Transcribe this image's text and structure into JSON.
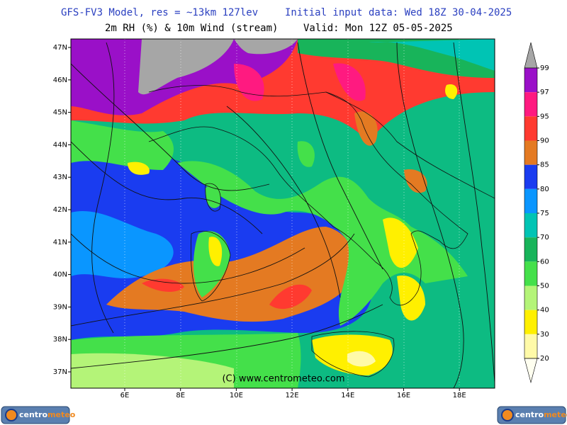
{
  "header": {
    "title_left": "GFS-FV3 Model, res = ~13km 127lev",
    "title_right": "Initial input data: Wed 18Z 30-04-2025",
    "subtitle_left": "2m RH (%) & 10m Wind (stream)",
    "subtitle_right": "Valid: Mon 12Z 05-05-2025"
  },
  "map": {
    "lat_labels": [
      "47N",
      "46N",
      "45N",
      "44N",
      "43N",
      "42N",
      "41N",
      "40N",
      "39N",
      "38N",
      "37N"
    ],
    "lon_labels": [
      "6E",
      "8E",
      "10E",
      "12E",
      "14E",
      "16E",
      "18E"
    ],
    "watermark": "(C) www.centrometeo.com"
  },
  "colorbar": {
    "levels": [
      99,
      97,
      95,
      90,
      85,
      80,
      75,
      70,
      60,
      50,
      40,
      30,
      20
    ],
    "colors": [
      "#a6a6a6",
      "#9a10c8",
      "#ff1a80",
      "#ff3a30",
      "#e47a22",
      "#1a3cf0",
      "#0a96ff",
      "#00c4b4",
      "#18b45a",
      "#44e04a",
      "#b4f478",
      "#fff000",
      "#fffaa8",
      "#fffff0"
    ]
  },
  "logos": [
    {
      "a": "centro",
      "b": "meteo"
    },
    {
      "a": "centro",
      "b": "meteo"
    }
  ]
}
